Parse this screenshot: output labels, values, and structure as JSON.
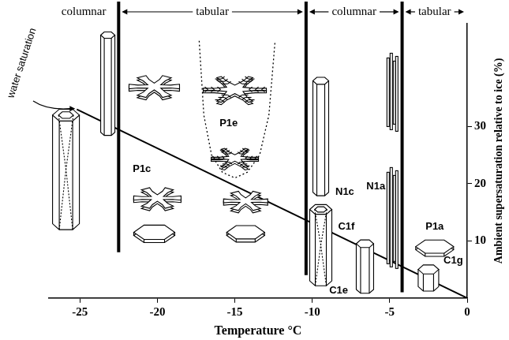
{
  "chart_data": {
    "type": "line",
    "x_label": "Temperature °C",
    "y_label": "Ambient supersaturation relative to ice (%)",
    "xlim": [
      -27,
      0
    ],
    "xticks": [
      -25,
      -20,
      -15,
      -10,
      -5,
      0
    ],
    "ylim": [
      0,
      48
    ],
    "yticks": [
      10,
      20,
      30
    ],
    "grid": false,
    "series": [
      {
        "name": "water saturation",
        "color": "#000000",
        "line_style": "solid",
        "x": [
          -25.2,
          0
        ],
        "values": [
          33,
          0
        ]
      },
      {
        "color": "#000000",
        "line_style": "dotted",
        "x": [
          -17.3,
          -17.0,
          -16.5,
          -15.8,
          -15.0,
          -14.2,
          -13.4,
          -12.8,
          -12.4
        ],
        "values": [
          45,
          32,
          25,
          22,
          21,
          22,
          25,
          32,
          45
        ]
      }
    ],
    "boundaries": [
      {
        "x": -22.5,
        "ymin": 8
      },
      {
        "x": -10.4,
        "ymin": 4
      },
      {
        "x": -4.2,
        "ymin": 1
      }
    ],
    "regimes": [
      "columnar",
      "tabular",
      "columnar",
      "tabular"
    ],
    "annotations": [
      {
        "text": "P1c",
        "x": -21.0,
        "y": 22.5
      },
      {
        "text": "P1e",
        "x": -15.4,
        "y": 30.5
      },
      {
        "text": "N1c",
        "x": -7.9,
        "y": 18.5
      },
      {
        "text": "C1f",
        "x": -7.8,
        "y": 12.5
      },
      {
        "text": "C1e",
        "x": -8.3,
        "y": 1.3
      },
      {
        "text": "N1a",
        "x": -5.9,
        "y": 19.5
      },
      {
        "text": "P1a",
        "x": -2.1,
        "y": 12.5
      },
      {
        "text": "C1g",
        "x": -0.9,
        "y": 6.5
      }
    ]
  }
}
